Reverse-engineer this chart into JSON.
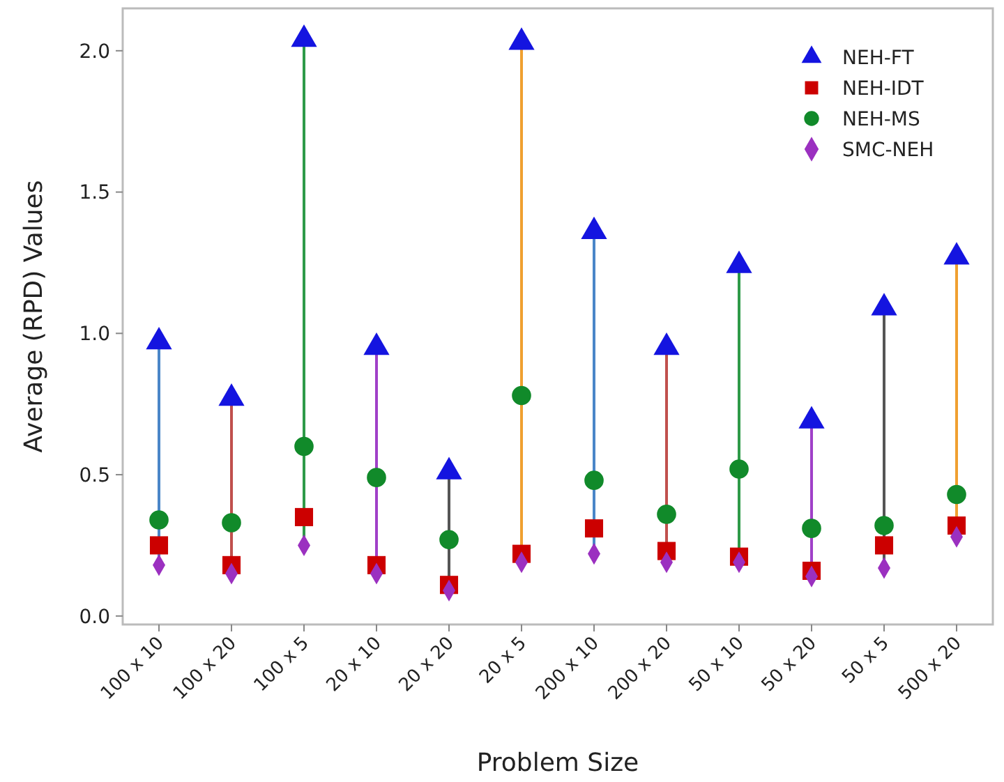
{
  "chart_data": {
    "type": "scatter",
    "xlabel": "Problem Size",
    "ylabel": "Average (RPD) Values",
    "categories": [
      "100 x 10",
      "100 x 20",
      "100 x 5",
      "20 x 10",
      "20 x 20",
      "20 x 5",
      "200 x 10",
      "200 x 20",
      "50 x 10",
      "50 x 20",
      "50 x 5",
      "500 x 20"
    ],
    "colors": [
      "#4a86c8",
      "#c0504d",
      "#2e9a48",
      "#a040c8",
      "#555555",
      "#f0a030",
      "#4a86c8",
      "#c0504d",
      "#2e9a48",
      "#a040c8",
      "#555555",
      "#f0a030"
    ],
    "series": [
      {
        "name": "NEH-FT",
        "color": "#1414e0",
        "marker": "triangle",
        "values": [
          0.97,
          0.77,
          2.04,
          0.95,
          0.51,
          2.03,
          1.36,
          0.95,
          1.24,
          0.69,
          1.09,
          1.27
        ]
      },
      {
        "name": "NEH-IDT",
        "color": "#cc0000",
        "marker": "square",
        "values": [
          0.25,
          0.18,
          0.35,
          0.18,
          0.11,
          0.22,
          0.31,
          0.23,
          0.21,
          0.16,
          0.25,
          0.32
        ]
      },
      {
        "name": "NEH-MS",
        "color": "#118a2a",
        "marker": "circle",
        "values": [
          0.34,
          0.33,
          0.6,
          0.49,
          0.27,
          0.78,
          0.48,
          0.36,
          0.52,
          0.31,
          0.32,
          0.43
        ]
      },
      {
        "name": "SMC-NEH",
        "color": "#9b30c0",
        "marker": "diamond",
        "values": [
          0.18,
          0.15,
          0.25,
          0.15,
          0.09,
          0.19,
          0.22,
          0.19,
          0.19,
          0.14,
          0.17,
          0.28
        ]
      }
    ],
    "ylim": [
      -0.03,
      2.15
    ],
    "yticks": [
      {
        "value": 0,
        "label": "0.0"
      },
      {
        "value": 0.5,
        "label": "0.5"
      },
      {
        "value": 1,
        "label": "1.0"
      },
      {
        "value": 1.5,
        "label": "1.5"
      },
      {
        "value": 2,
        "label": "2.0"
      }
    ],
    "grid": false,
    "legend": "top right"
  }
}
